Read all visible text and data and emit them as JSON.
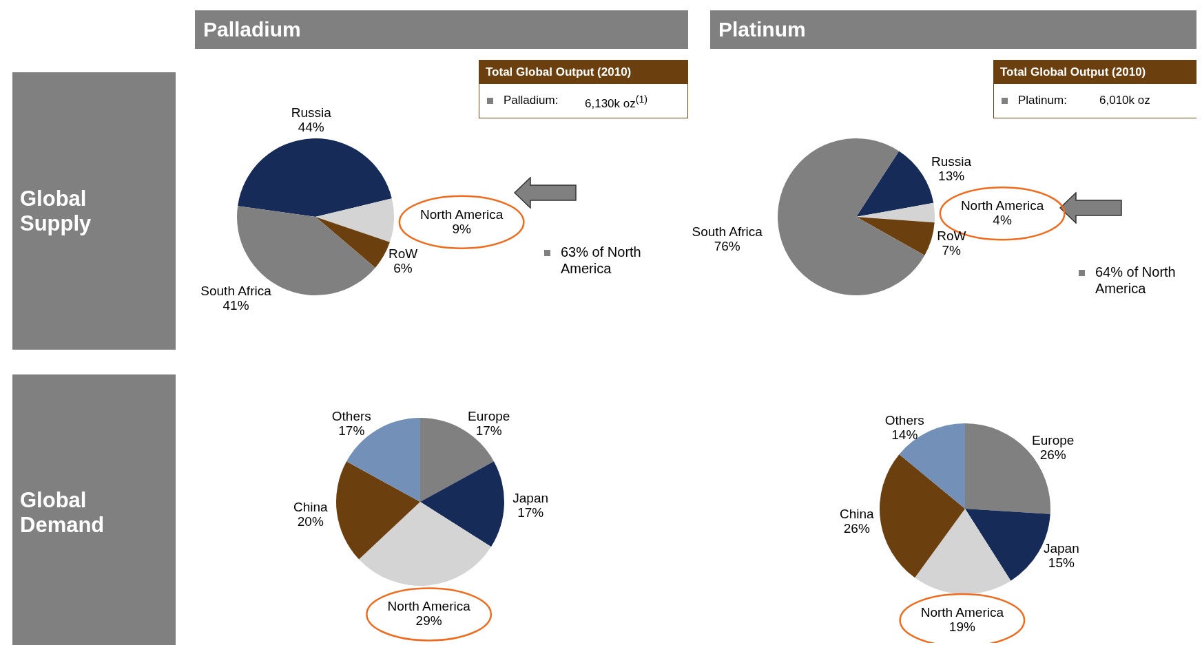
{
  "chart_data": [
    {
      "type": "pie",
      "title": "Palladium",
      "categories": [
        "Russia",
        "North America",
        "RoW",
        "South Africa"
      ],
      "values": [
        44,
        9,
        6,
        41
      ],
      "value_labels": [
        "44%",
        "9%",
        "6%",
        "41%"
      ],
      "colors": [
        "#162b57",
        "#d4d4d4",
        "#6b3f0e",
        "#808080"
      ],
      "annotations": [
        "Global Supply",
        "Total Global Output (2010)",
        "Palladium:",
        "6,130k oz$^{(1)}$",
        "63% of North America"
      ]
    },
    {
      "type": "pie",
      "title": "Platinum",
      "categories": [
        "Russia",
        "North America",
        "RoW",
        "South Africa"
      ],
      "values": [
        13,
        4,
        7,
        76
      ],
      "value_labels": [
        "13%",
        "4%",
        "7%",
        "76%"
      ],
      "colors": [
        "#162b57",
        "#d4d4d4",
        "#6b3f0e",
        "#808080"
      ],
      "annotations": [
        "Total Global Output (2010)",
        "Platinum:",
        "6,010k oz",
        "64% of North America"
      ]
    },
    {
      "type": "pie",
      "categories": [
        "Europe",
        "Japan",
        "North America",
        "China",
        "Others"
      ],
      "values": [
        17,
        17,
        29,
        20,
        17
      ],
      "value_labels": [
        "17%",
        "17%",
        "29%",
        "20%",
        "17%"
      ],
      "colors": [
        "#808080",
        "#162b57",
        "#d4d4d4",
        "#6b3f0e",
        "#7390b8"
      ],
      "annotations": [
        "Global Demand"
      ]
    },
    {
      "type": "pie",
      "categories": [
        "Europe",
        "Japan",
        "North America",
        "China",
        "Others"
      ],
      "values": [
        26,
        15,
        19,
        26,
        14
      ],
      "value_labels": [
        "26%",
        "15%",
        "19%",
        "26%",
        "14%"
      ],
      "colors": [
        "#808080",
        "#162b57",
        "#d4d4d4",
        "#6b3f0e",
        "#7390b8"
      ]
    }
  ]
}
